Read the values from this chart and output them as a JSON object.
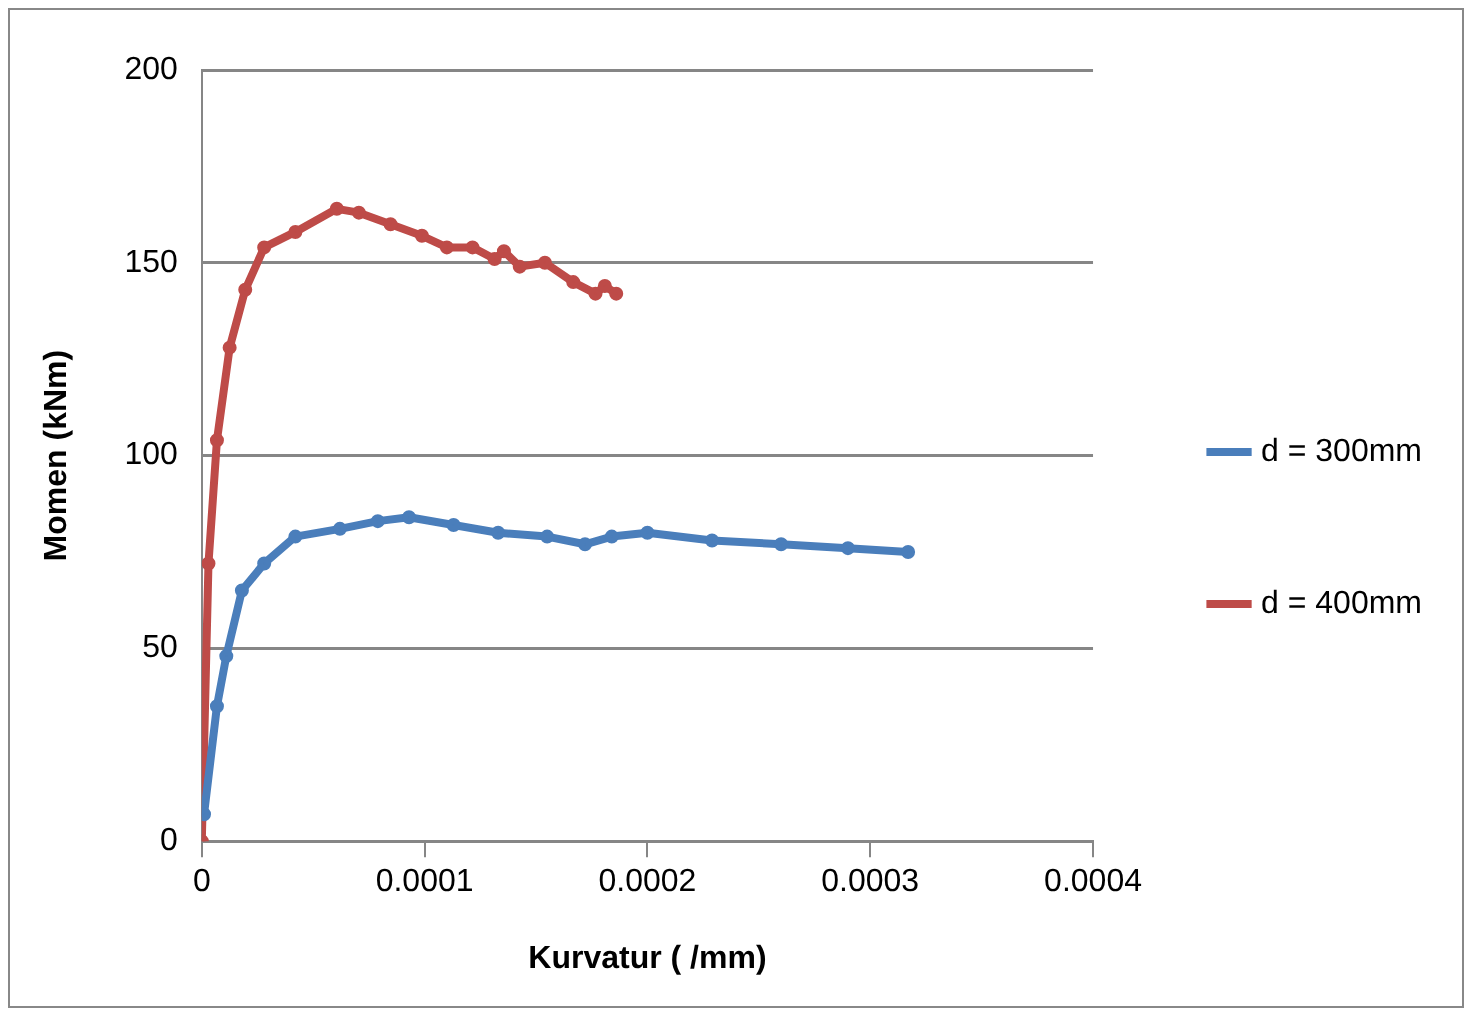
{
  "chart_data": {
    "type": "line",
    "xlabel": "Kurvatur ( /mm)",
    "ylabel": "Momen (kNm)",
    "xlim": [
      0,
      0.0004
    ],
    "xticks": [
      0,
      0.0001,
      0.0002,
      0.0003,
      0.0004
    ],
    "ylim": [
      0,
      200
    ],
    "yticks": [
      0,
      50,
      100,
      150,
      200
    ],
    "grid": "y",
    "legend": "right",
    "marker": "circle",
    "line_style": "solid",
    "series": [
      {
        "name": "d = 300mm",
        "color": "#4a7ebb",
        "x": [
          1e-06,
          6.8e-06,
          1.1e-05,
          1.8e-05,
          2.8e-05,
          4.2e-05,
          6.2e-05,
          7.9e-05,
          9.3e-05,
          0.000113,
          0.000133,
          0.000155,
          0.000172,
          0.000184,
          0.0002,
          0.000229,
          0.00026,
          0.00029,
          0.000317
        ],
        "values": [
          7,
          35,
          48,
          65,
          72,
          79,
          81,
          83,
          84,
          82,
          80,
          79,
          77,
          79,
          80,
          78,
          77,
          76,
          75
        ]
      },
      {
        "name": "d = 400mm",
        "color": "#be4b48",
        "x": [
          0,
          3e-06,
          6.8e-06,
          1.25e-05,
          1.95e-05,
          2.8e-05,
          4.2e-05,
          6.06e-05,
          7.05e-05,
          8.47e-05,
          9.88e-05,
          0.00011,
          0.0001215,
          0.0001314,
          0.0001356,
          0.0001427,
          0.000154,
          0.0001667,
          0.0001767,
          0.0001809,
          0.000186
        ],
        "values": [
          0,
          72,
          104,
          128,
          143,
          154,
          158,
          164,
          163,
          160,
          157,
          154,
          154,
          151,
          153,
          149,
          150,
          145,
          142,
          144,
          142
        ]
      }
    ]
  }
}
